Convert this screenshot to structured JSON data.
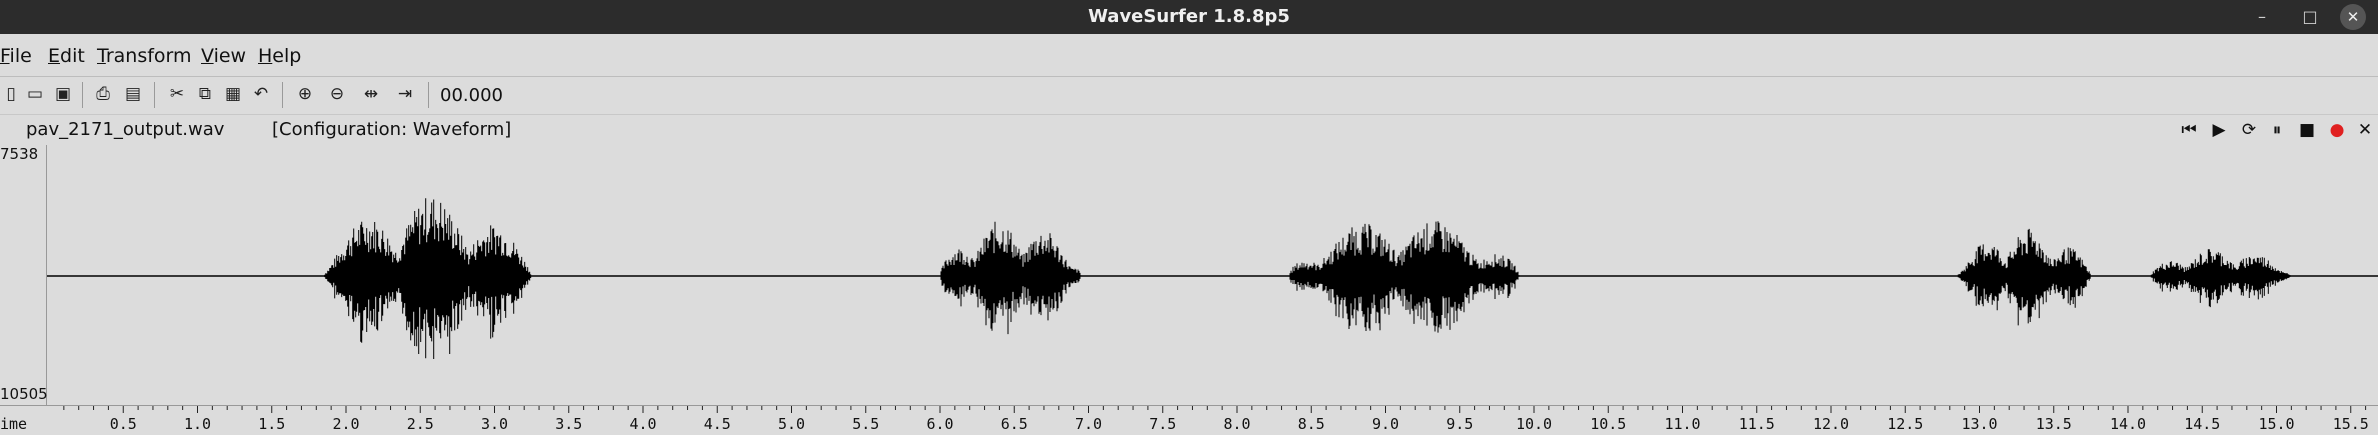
{
  "window": {
    "title": "WaveSurfer 1.8.8p5",
    "controls": {
      "minimize": "–",
      "maximize": "□",
      "close": "✕"
    }
  },
  "menubar": {
    "items": [
      {
        "label": "File",
        "underline": "F",
        "rest": "ile"
      },
      {
        "label": "Edit",
        "underline": "E",
        "rest": "dit"
      },
      {
        "label": "Transform",
        "underline": "T",
        "rest": "ransform"
      },
      {
        "label": "View",
        "underline": "V",
        "rest": "iew"
      },
      {
        "label": "Help",
        "underline": "H",
        "rest": "elp"
      }
    ]
  },
  "toolbar": {
    "icons": [
      "new-icon",
      "open-icon",
      "save-icon",
      "print-icon",
      "properties-icon",
      "cut-icon",
      "copy-icon",
      "paste-icon",
      "undo-icon",
      "zoom-in-icon",
      "zoom-out-icon",
      "zoom-fit-icon",
      "zoom-selection-icon"
    ],
    "time_display": "00.000"
  },
  "filebar": {
    "filename": "pav_2171_output.wav",
    "configuration": "[Configuration: Waveform]"
  },
  "playback": {
    "icons": [
      "skip-to-start-icon",
      "play-icon",
      "play-loop-icon",
      "pause-icon",
      "stop-icon",
      "record-icon",
      "close-pane-icon"
    ],
    "record_color": "#e02020"
  },
  "waveform": {
    "y_max_label": "7538",
    "y_min_label": "10505",
    "segments_seconds": [
      {
        "start": 1.85,
        "end": 3.25,
        "peak": 1.0
      },
      {
        "start": 6.0,
        "end": 6.95,
        "peak": 0.7
      },
      {
        "start": 8.35,
        "end": 9.9,
        "peak": 0.72
      },
      {
        "start": 12.85,
        "end": 13.75,
        "peak": 0.58
      },
      {
        "start": 14.15,
        "end": 15.1,
        "peak": 0.35
      }
    ]
  },
  "time_axis": {
    "label": "ime",
    "ticks": [
      "0.5",
      "1.0",
      "1.5",
      "2.0",
      "2.5",
      "3.0",
      "3.5",
      "4.0",
      "4.5",
      "5.0",
      "5.5",
      "6.0",
      "6.5",
      "7.0",
      "7.5",
      "8.0",
      "8.5",
      "9.0",
      "9.5",
      "10.0",
      "10.5",
      "11.0",
      "11.5",
      "12.0",
      "12.5",
      "13.0",
      "13.5",
      "14.0",
      "14.5",
      "15.0",
      "15.5"
    ]
  }
}
